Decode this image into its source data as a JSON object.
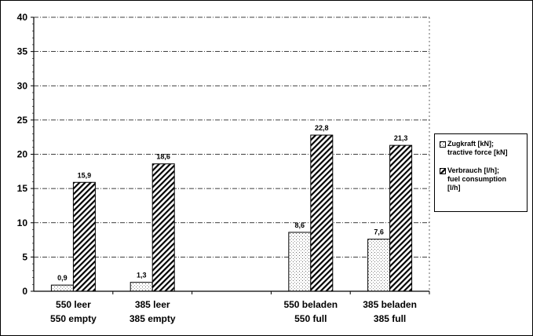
{
  "chart_data": {
    "type": "bar",
    "title": "",
    "xlabel": "",
    "ylabel": "",
    "ylim": [
      0,
      40
    ],
    "yticks": [
      0,
      5,
      10,
      15,
      20,
      25,
      30,
      35,
      40
    ],
    "grid": true,
    "legend_position": "right",
    "categories": [
      {
        "line1": "550 leer",
        "line2": "550 empty"
      },
      {
        "line1": "385 leer",
        "line2": "385 empty"
      },
      {
        "line1": "",
        "line2": ""
      },
      {
        "line1": "550 beladen",
        "line2": "550 full"
      },
      {
        "line1": "385 beladen",
        "line2": "385 full"
      }
    ],
    "series": [
      {
        "name": "Zugkraft [kN]; tractive force [kN]",
        "legend_text": "Zugkraft [kN];\ntractive force [kN]",
        "pattern": "dotted",
        "values": [
          0.9,
          1.3,
          null,
          8.6,
          7.6
        ],
        "labels": [
          "0,9",
          "1,3",
          "",
          "8,6",
          "7,6"
        ]
      },
      {
        "name": "Verbrauch [l/h]; fuel consumption [l/h]",
        "legend_text": "Verbrauch [l/h];\nfuel consumption\n[l/h]",
        "pattern": "hatched",
        "values": [
          15.9,
          18.6,
          null,
          22.8,
          21.3
        ],
        "labels": [
          "15,9",
          "18,6",
          "",
          "22,8",
          "21,3"
        ]
      }
    ]
  }
}
